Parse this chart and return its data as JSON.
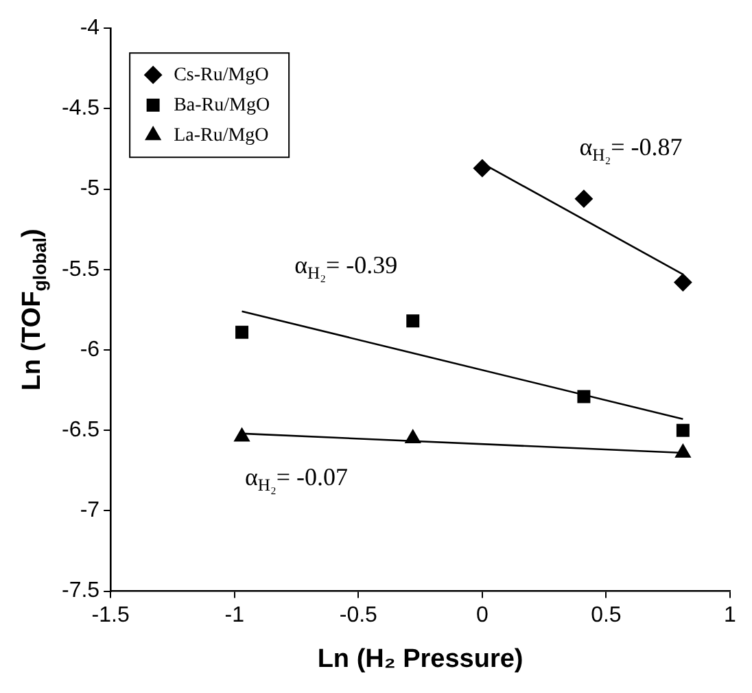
{
  "chart_data": {
    "type": "scatter",
    "xlabel": "Ln (H₂ Pressure)",
    "ylabel": "Ln (TOF$_{global}$)",
    "xlim": [
      -1.5,
      1
    ],
    "xticks": [
      -1.5,
      -1,
      -0.5,
      0,
      0.5,
      1
    ],
    "ylim": [
      -7.5,
      -4
    ],
    "yticks": [
      -7.5,
      -7,
      -6.5,
      -6,
      -5.5,
      -5,
      -4.5,
      -4
    ],
    "grid": false,
    "legend": "top left",
    "series": [
      {
        "name": "Cs-Ru/MgO",
        "marker": "diamond",
        "color": "#000000",
        "x": [
          0,
          0.41,
          0.81
        ],
        "values": [
          -4.87,
          -5.06,
          -5.58
        ]
      },
      {
        "name": "Ba-Ru/MgO",
        "marker": "square",
        "color": "#000000",
        "x": [
          -0.97,
          -0.28,
          0.41,
          0.81
        ],
        "values": [
          -5.89,
          -5.82,
          -6.29,
          -6.5
        ]
      },
      {
        "name": "La-Ru/MgO",
        "marker": "triangle",
        "color": "#000000",
        "x": [
          -0.97,
          -0.28,
          0.81
        ],
        "values": [
          -6.54,
          -6.55,
          -6.64
        ]
      },
      {
        "type": "line",
        "marker": "none",
        "color": "#000000",
        "x": [
          0,
          0.81
        ],
        "values": [
          -4.84,
          -5.53
        ]
      },
      {
        "type": "line",
        "marker": "none",
        "color": "#000000",
        "x": [
          -0.97,
          0.81
        ],
        "values": [
          -5.76,
          -6.43
        ]
      },
      {
        "type": "line",
        "marker": "none",
        "color": "#000000",
        "x": [
          -0.97,
          0.81
        ],
        "values": [
          -6.52,
          -6.64
        ]
      }
    ],
    "annotations": [
      "α$_{H₂}$= -0.87",
      "α$_{H₂}$= -0.39",
      "α$_{H₂}$= -0.07"
    ]
  }
}
